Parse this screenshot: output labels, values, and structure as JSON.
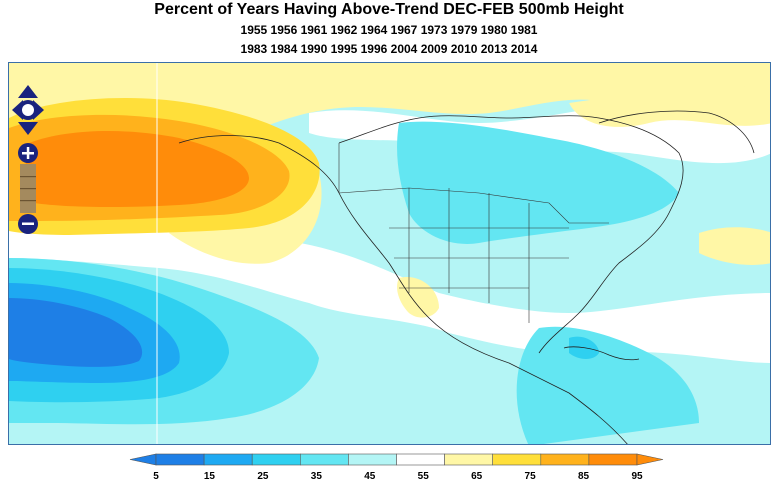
{
  "title": "Percent of Years Having Above-Trend DEC-FEB 500mb Height",
  "years_line1": "1955 1956 1961 1962 1964 1967 1973 1979 1980 1981",
  "years_line2": "1983 1984 1990 1995 1996 2004 2009 2010 2013 2014",
  "map_controls": {
    "pan": "pan-arrows-icon",
    "zoom_in": "plus-icon",
    "zoom_out": "minus-icon"
  },
  "legend": {
    "labels": [
      "5",
      "15",
      "25",
      "35",
      "45",
      "55",
      "65",
      "75",
      "85",
      "95"
    ],
    "colors": [
      "#1e7fe6",
      "#1ea9f2",
      "#2fd0f0",
      "#63e6f2",
      "#b4f5f5",
      "#ffffff",
      "#fff7a6",
      "#ffdf3a",
      "#ffb21c",
      "#ff8c0a"
    ]
  }
}
